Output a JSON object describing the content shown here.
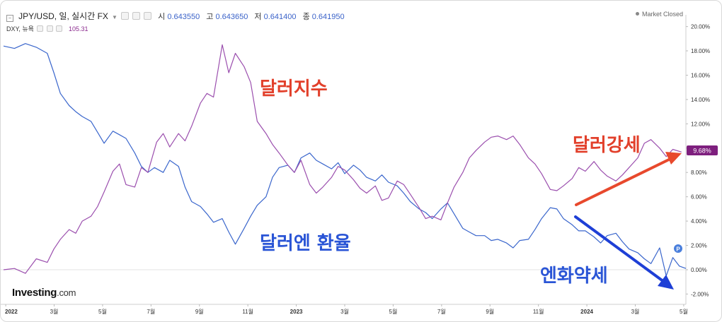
{
  "header": {
    "symbol": "JPY/USD, 일, 실시간 FX",
    "open_label": "시",
    "open_value": "0.643550",
    "high_label": "고",
    "high_value": "0.643650",
    "low_label": "저",
    "low_value": "0.641400",
    "close_label": "종",
    "close_value": "0.641950",
    "market_status": "Market Closed"
  },
  "subheader": {
    "symbol": "DXY, 뉴욕",
    "value": "105.31"
  },
  "logo": {
    "main": "Investing",
    "suffix": ".com"
  },
  "price_tag": "9.68%",
  "annotations": {
    "dollar_index": "달러지수",
    "dollar_strength": "달러강세",
    "dollar_yen_rate": "달러엔 환율",
    "yen_weakness": "엔화약세",
    "marker": "P"
  },
  "colors": {
    "jpy_usd_line": "#3a66cc",
    "dxy_line": "#9b4fae",
    "red_label": "#e2402b",
    "blue_label": "#2a55d6",
    "red_arrow": "#e8492d",
    "blue_arrow": "#1e3fd6",
    "tag_bg": "#7e1f7e"
  },
  "chart_data": {
    "type": "line",
    "x_ticks": [
      "2022",
      "3월",
      "5월",
      "7월",
      "9월",
      "11월",
      "2023",
      "3월",
      "5월",
      "7월",
      "9월",
      "11월",
      "2024",
      "3월",
      "5월"
    ],
    "y_ticks": [
      "20.00%",
      "18.00%",
      "16.00%",
      "14.00%",
      "12.00%",
      "10.00%",
      "8.00%",
      "6.00%",
      "4.00%",
      "2.00%",
      "0.00%",
      "-2.00%"
    ],
    "ylim": [
      -2.5,
      20.5
    ],
    "series": [
      {
        "name": "JPY/USD",
        "points": [
          [
            0,
            18.4
          ],
          [
            0.5,
            18.2
          ],
          [
            1,
            18.6
          ],
          [
            1.5,
            18.3
          ],
          [
            2,
            17.8
          ],
          [
            2.3,
            16.2
          ],
          [
            2.6,
            14.5
          ],
          [
            3,
            13.5
          ],
          [
            3.3,
            13.0
          ],
          [
            3.6,
            12.6
          ],
          [
            4,
            12.2
          ],
          [
            4.3,
            11.3
          ],
          [
            4.6,
            10.4
          ],
          [
            5,
            11.4
          ],
          [
            5.3,
            11.1
          ],
          [
            5.6,
            10.8
          ],
          [
            6,
            9.6
          ],
          [
            6.3,
            8.5
          ],
          [
            6.6,
            8.0
          ],
          [
            6.9,
            8.4
          ],
          [
            7.3,
            8.0
          ],
          [
            7.6,
            9.0
          ],
          [
            8,
            8.5
          ],
          [
            8.3,
            6.8
          ],
          [
            8.6,
            5.6
          ],
          [
            9,
            5.2
          ],
          [
            9.3,
            4.6
          ],
          [
            9.6,
            3.9
          ],
          [
            10,
            4.2
          ],
          [
            10.3,
            3.1
          ],
          [
            10.6,
            2.1
          ],
          [
            11,
            3.4
          ],
          [
            11.3,
            4.4
          ],
          [
            11.6,
            5.3
          ],
          [
            12,
            6.0
          ],
          [
            12.3,
            7.6
          ],
          [
            12.6,
            8.4
          ],
          [
            13,
            8.6
          ],
          [
            13.3,
            8.0
          ],
          [
            13.6,
            9.2
          ],
          [
            14,
            9.6
          ],
          [
            14.3,
            9.0
          ],
          [
            14.6,
            8.7
          ],
          [
            15,
            8.3
          ],
          [
            15.3,
            8.8
          ],
          [
            15.6,
            7.9
          ],
          [
            16,
            8.6
          ],
          [
            16.3,
            8.2
          ],
          [
            16.6,
            7.6
          ],
          [
            17,
            7.3
          ],
          [
            17.3,
            7.8
          ],
          [
            17.6,
            7.2
          ],
          [
            18,
            6.9
          ],
          [
            18.3,
            6.3
          ],
          [
            18.6,
            5.6
          ],
          [
            19,
            5.0
          ],
          [
            19.3,
            4.7
          ],
          [
            19.6,
            4.2
          ],
          [
            20,
            5.0
          ],
          [
            20.3,
            5.5
          ],
          [
            20.6,
            4.6
          ],
          [
            21,
            3.4
          ],
          [
            21.3,
            3.1
          ],
          [
            21.6,
            2.8
          ],
          [
            22,
            2.8
          ],
          [
            22.3,
            2.4
          ],
          [
            22.6,
            2.5
          ],
          [
            23,
            2.2
          ],
          [
            23.3,
            1.8
          ],
          [
            23.6,
            2.4
          ],
          [
            24,
            2.5
          ],
          [
            24.3,
            3.3
          ],
          [
            24.6,
            4.2
          ],
          [
            25,
            5.1
          ],
          [
            25.3,
            5.0
          ],
          [
            25.6,
            4.2
          ],
          [
            26,
            3.7
          ],
          [
            26.3,
            3.2
          ],
          [
            26.6,
            3.2
          ],
          [
            27,
            2.7
          ],
          [
            27.3,
            2.2
          ],
          [
            27.6,
            2.8
          ],
          [
            28,
            3.0
          ],
          [
            28.3,
            2.3
          ],
          [
            28.6,
            1.7
          ],
          [
            29,
            1.4
          ],
          [
            29.3,
            0.9
          ],
          [
            29.6,
            0.5
          ],
          [
            30,
            1.8
          ],
          [
            30.3,
            -0.5
          ],
          [
            30.6,
            1.0
          ],
          [
            30.9,
            0.3
          ],
          [
            31.2,
            0.1
          ]
        ]
      },
      {
        "name": "DXY",
        "points": [
          [
            0,
            0.0
          ],
          [
            0.5,
            0.1
          ],
          [
            1,
            -0.3
          ],
          [
            1.5,
            0.9
          ],
          [
            2,
            0.6
          ],
          [
            2.3,
            1.7
          ],
          [
            2.6,
            2.5
          ],
          [
            3,
            3.3
          ],
          [
            3.3,
            3.0
          ],
          [
            3.6,
            4.0
          ],
          [
            4,
            4.4
          ],
          [
            4.3,
            5.2
          ],
          [
            4.6,
            6.4
          ],
          [
            5,
            8.1
          ],
          [
            5.3,
            8.7
          ],
          [
            5.6,
            7.0
          ],
          [
            6,
            6.8
          ],
          [
            6.3,
            8.4
          ],
          [
            6.6,
            8.0
          ],
          [
            7,
            10.5
          ],
          [
            7.3,
            11.2
          ],
          [
            7.6,
            10.1
          ],
          [
            8,
            11.2
          ],
          [
            8.3,
            10.6
          ],
          [
            8.6,
            11.8
          ],
          [
            9,
            13.7
          ],
          [
            9.3,
            14.5
          ],
          [
            9.6,
            14.2
          ],
          [
            10,
            18.5
          ],
          [
            10.3,
            16.2
          ],
          [
            10.6,
            17.8
          ],
          [
            11,
            16.7
          ],
          [
            11.3,
            15.4
          ],
          [
            11.6,
            12.2
          ],
          [
            12,
            11.2
          ],
          [
            12.3,
            10.3
          ],
          [
            12.6,
            9.6
          ],
          [
            13,
            8.6
          ],
          [
            13.3,
            8.0
          ],
          [
            13.6,
            9.0
          ],
          [
            14,
            7.0
          ],
          [
            14.3,
            6.3
          ],
          [
            14.6,
            6.8
          ],
          [
            15,
            7.6
          ],
          [
            15.3,
            8.5
          ],
          [
            15.6,
            8.2
          ],
          [
            16,
            7.4
          ],
          [
            16.3,
            6.7
          ],
          [
            16.6,
            6.3
          ],
          [
            17,
            6.9
          ],
          [
            17.3,
            5.7
          ],
          [
            17.6,
            5.9
          ],
          [
            18,
            7.3
          ],
          [
            18.3,
            7.0
          ],
          [
            18.6,
            6.2
          ],
          [
            19,
            5.1
          ],
          [
            19.3,
            4.2
          ],
          [
            19.6,
            4.4
          ],
          [
            20,
            4.1
          ],
          [
            20.3,
            5.5
          ],
          [
            20.6,
            6.8
          ],
          [
            21,
            8.0
          ],
          [
            21.3,
            9.2
          ],
          [
            21.6,
            9.8
          ],
          [
            22,
            10.5
          ],
          [
            22.3,
            10.9
          ],
          [
            22.6,
            11.0
          ],
          [
            23,
            10.7
          ],
          [
            23.3,
            11.0
          ],
          [
            23.6,
            10.3
          ],
          [
            24,
            9.2
          ],
          [
            24.3,
            8.7
          ],
          [
            24.6,
            7.9
          ],
          [
            25,
            6.6
          ],
          [
            25.3,
            6.5
          ],
          [
            25.6,
            6.9
          ],
          [
            26,
            7.5
          ],
          [
            26.3,
            8.4
          ],
          [
            26.6,
            8.1
          ],
          [
            27,
            8.9
          ],
          [
            27.3,
            8.2
          ],
          [
            27.6,
            7.7
          ],
          [
            28,
            7.3
          ],
          [
            28.3,
            7.8
          ],
          [
            28.6,
            8.4
          ],
          [
            29,
            9.2
          ],
          [
            29.3,
            10.4
          ],
          [
            29.6,
            10.7
          ],
          [
            30,
            10.0
          ],
          [
            30.3,
            9.3
          ],
          [
            30.6,
            9.9
          ],
          [
            31.0,
            9.68
          ]
        ]
      }
    ]
  }
}
